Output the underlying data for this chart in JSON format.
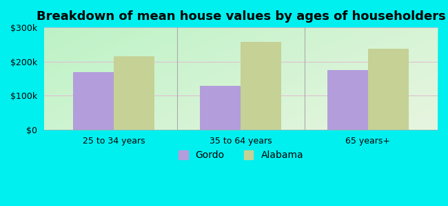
{
  "title": "Breakdown of mean house values by ages of householders",
  "categories": [
    "25 to 34 years",
    "35 to 64 years",
    "65 years+"
  ],
  "gordo_values": [
    170000,
    130000,
    175000
  ],
  "alabama_values": [
    215000,
    258000,
    238000
  ],
  "gordo_color": "#b39ddb",
  "alabama_color": "#c5d195",
  "ylim": [
    0,
    300000
  ],
  "yticks": [
    0,
    100000,
    200000,
    300000
  ],
  "ytick_labels": [
    "$0",
    "$100k",
    "$200k",
    "$300k"
  ],
  "background_color": "#00f0f0",
  "legend_gordo": "Gordo",
  "legend_alabama": "Alabama",
  "bar_width": 0.32,
  "title_fontsize": 13,
  "tick_fontsize": 9,
  "legend_fontsize": 10
}
